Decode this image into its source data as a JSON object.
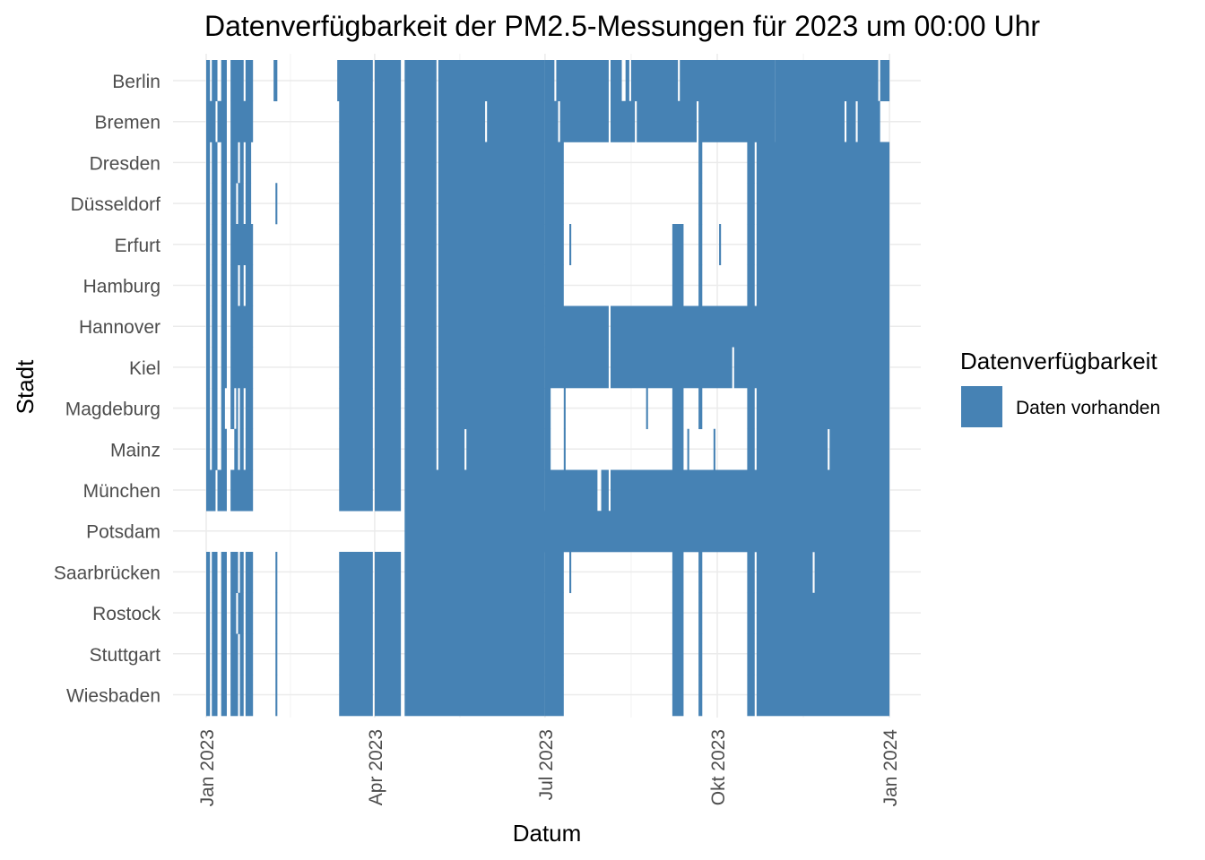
{
  "chart_data": {
    "type": "heatmap",
    "title": "Datenverfügbarkeit der PM2.5-Messungen für 2023 um 00:00 Uhr",
    "xlabel": "Datum",
    "ylabel": "Stadt",
    "x_range": [
      "2023-01-01",
      "2023-12-31"
    ],
    "x_ticks": [
      {
        "date": "2023-01-01",
        "label": "Jan 2023"
      },
      {
        "date": "2023-04-01",
        "label": "Apr 2023"
      },
      {
        "date": "2023-07-01",
        "label": "Jul 2023"
      },
      {
        "date": "2023-10-01",
        "label": "Okt 2023"
      },
      {
        "date": "2024-01-01",
        "label": "Jan 2024"
      }
    ],
    "grid": true,
    "legend": {
      "title": "Datenverfügbarkeit",
      "position": "right",
      "entries": [
        {
          "label": "Daten vorhanden",
          "color": "#4682B4"
        }
      ]
    },
    "fill_color": "#4682B4",
    "cities": [
      "Berlin",
      "Bremen",
      "Dresden",
      "Düsseldorf",
      "Erfurt",
      "Hamburg",
      "Hannover",
      "Kiel",
      "Magdeburg",
      "Mainz",
      "München",
      "Potsdam",
      "Saarbrücken",
      "Rostock",
      "Stuttgart",
      "Wiesbaden"
    ],
    "available": [
      [
        [
          "01-01",
          "01-02"
        ],
        [
          "01-04",
          "01-06"
        ],
        [
          "01-09",
          "01-11"
        ],
        [
          "01-14",
          "01-20"
        ],
        [
          "01-22",
          "01-25"
        ],
        [
          "02-06",
          "02-07"
        ],
        [
          "03-12",
          "03-30"
        ],
        [
          "04-01",
          "04-14"
        ],
        [
          "04-17",
          "05-03"
        ],
        [
          "05-05",
          "06-30"
        ],
        [
          "07-01",
          "07-05"
        ],
        [
          "07-07",
          "08-03"
        ],
        [
          "08-05",
          "08-10"
        ],
        [
          "08-13",
          "08-14"
        ],
        [
          "08-16",
          "09-09"
        ],
        [
          "09-11",
          "10-31"
        ],
        [
          "11-01",
          "12-25"
        ],
        [
          "12-27",
          "12-31"
        ]
      ],
      [
        [
          "01-01",
          "01-05"
        ],
        [
          "01-07",
          "01-11"
        ],
        [
          "01-14",
          "01-25"
        ],
        [
          "03-13",
          "03-30"
        ],
        [
          "04-01",
          "04-14"
        ],
        [
          "04-17",
          "05-03"
        ],
        [
          "05-05",
          "05-29"
        ],
        [
          "05-31",
          "06-30"
        ],
        [
          "07-01",
          "07-07"
        ],
        [
          "07-09",
          "08-03"
        ],
        [
          "08-05",
          "08-17"
        ],
        [
          "08-19",
          "09-19"
        ],
        [
          "09-21",
          "10-31"
        ],
        [
          "11-01",
          "12-07"
        ],
        [
          "12-09",
          "12-13"
        ],
        [
          "12-15",
          "12-26"
        ]
      ],
      [
        [
          "01-01",
          "01-02"
        ],
        [
          "01-04",
          "01-06"
        ],
        [
          "01-09",
          "01-11"
        ],
        [
          "01-14",
          "01-17"
        ],
        [
          "01-19",
          "01-20"
        ],
        [
          "01-22",
          "01-24"
        ],
        [
          "03-13",
          "03-30"
        ],
        [
          "04-01",
          "04-14"
        ],
        [
          "04-17",
          "05-03"
        ],
        [
          "05-05",
          "06-30"
        ],
        [
          "07-01",
          "07-10"
        ],
        [
          "09-21",
          "09-22"
        ],
        [
          "10-17",
          "10-20"
        ],
        [
          "10-22",
          "12-31"
        ]
      ],
      [
        [
          "01-01",
          "01-02"
        ],
        [
          "01-04",
          "01-06"
        ],
        [
          "01-09",
          "01-11"
        ],
        [
          "01-14",
          "01-16"
        ],
        [
          "01-18",
          "01-20"
        ],
        [
          "01-22",
          "01-24"
        ],
        [
          "02-07",
          "02-07"
        ],
        [
          "03-13",
          "03-30"
        ],
        [
          "04-01",
          "04-14"
        ],
        [
          "04-17",
          "05-03"
        ],
        [
          "05-05",
          "06-30"
        ],
        [
          "07-01",
          "07-10"
        ],
        [
          "09-21",
          "09-22"
        ],
        [
          "10-17",
          "10-20"
        ],
        [
          "10-22",
          "12-31"
        ]
      ],
      [
        [
          "01-01",
          "01-02"
        ],
        [
          "01-04",
          "01-06"
        ],
        [
          "01-09",
          "01-11"
        ],
        [
          "01-14",
          "01-25"
        ],
        [
          "03-13",
          "03-30"
        ],
        [
          "04-01",
          "04-14"
        ],
        [
          "04-17",
          "05-03"
        ],
        [
          "05-05",
          "06-30"
        ],
        [
          "07-01",
          "07-10"
        ],
        [
          "07-14",
          "07-14"
        ],
        [
          "09-07",
          "09-12"
        ],
        [
          "09-21",
          "09-22"
        ],
        [
          "10-02",
          "10-02"
        ],
        [
          "10-17",
          "10-20"
        ],
        [
          "10-22",
          "12-31"
        ]
      ],
      [
        [
          "01-01",
          "01-02"
        ],
        [
          "01-04",
          "01-06"
        ],
        [
          "01-09",
          "01-11"
        ],
        [
          "01-14",
          "01-17"
        ],
        [
          "01-19",
          "01-20"
        ],
        [
          "01-22",
          "01-25"
        ],
        [
          "03-13",
          "03-30"
        ],
        [
          "04-01",
          "04-14"
        ],
        [
          "04-17",
          "05-03"
        ],
        [
          "05-05",
          "06-30"
        ],
        [
          "07-01",
          "07-10"
        ],
        [
          "09-07",
          "09-12"
        ],
        [
          "09-21",
          "09-22"
        ],
        [
          "10-17",
          "10-20"
        ],
        [
          "10-22",
          "12-31"
        ]
      ],
      [
        [
          "01-01",
          "01-02"
        ],
        [
          "01-04",
          "01-06"
        ],
        [
          "01-09",
          "01-11"
        ],
        [
          "01-14",
          "01-25"
        ],
        [
          "03-13",
          "03-30"
        ],
        [
          "04-01",
          "04-14"
        ],
        [
          "04-17",
          "05-03"
        ],
        [
          "05-05",
          "06-30"
        ],
        [
          "07-01",
          "08-03"
        ],
        [
          "08-05",
          "12-31"
        ]
      ],
      [
        [
          "01-01",
          "01-02"
        ],
        [
          "01-04",
          "01-06"
        ],
        [
          "01-09",
          "01-11"
        ],
        [
          "01-14",
          "01-25"
        ],
        [
          "03-13",
          "03-30"
        ],
        [
          "04-01",
          "04-14"
        ],
        [
          "04-17",
          "05-03"
        ],
        [
          "05-05",
          "06-30"
        ],
        [
          "07-01",
          "08-03"
        ],
        [
          "08-05",
          "10-08"
        ],
        [
          "10-10",
          "12-31"
        ]
      ],
      [
        [
          "01-01",
          "01-02"
        ],
        [
          "01-04",
          "01-06"
        ],
        [
          "01-09",
          "01-10"
        ],
        [
          "01-14",
          "01-15"
        ],
        [
          "01-17",
          "01-17"
        ],
        [
          "01-19",
          "01-20"
        ],
        [
          "01-22",
          "01-25"
        ],
        [
          "03-13",
          "03-30"
        ],
        [
          "04-01",
          "04-14"
        ],
        [
          "04-17",
          "05-03"
        ],
        [
          "05-05",
          "06-30"
        ],
        [
          "07-01",
          "07-03"
        ],
        [
          "07-11",
          "07-11"
        ],
        [
          "08-24",
          "08-24"
        ],
        [
          "09-07",
          "09-12"
        ],
        [
          "09-21",
          "09-22"
        ],
        [
          "10-17",
          "10-20"
        ],
        [
          "10-22",
          "12-31"
        ]
      ],
      [
        [
          "01-01",
          "01-02"
        ],
        [
          "01-04",
          "01-06"
        ],
        [
          "01-09",
          "01-11"
        ],
        [
          "01-16",
          "01-17"
        ],
        [
          "01-19",
          "01-20"
        ],
        [
          "01-22",
          "01-25"
        ],
        [
          "03-13",
          "03-30"
        ],
        [
          "04-01",
          "04-14"
        ],
        [
          "04-17",
          "05-03"
        ],
        [
          "05-05",
          "05-18"
        ],
        [
          "05-20",
          "06-30"
        ],
        [
          "07-01",
          "07-03"
        ],
        [
          "07-11",
          "07-11"
        ],
        [
          "09-07",
          "09-12"
        ],
        [
          "09-15",
          "09-15"
        ],
        [
          "09-29",
          "09-29"
        ],
        [
          "10-17",
          "10-20"
        ],
        [
          "10-22",
          "11-28"
        ],
        [
          "11-30",
          "12-31"
        ]
      ],
      [
        [
          "01-01",
          "01-05"
        ],
        [
          "01-07",
          "01-11"
        ],
        [
          "01-14",
          "01-25"
        ],
        [
          "03-13",
          "03-30"
        ],
        [
          "04-01",
          "04-14"
        ],
        [
          "04-17",
          "06-30"
        ],
        [
          "07-01",
          "07-28"
        ],
        [
          "07-31",
          "08-03"
        ],
        [
          "08-05",
          "12-31"
        ]
      ],
      [
        [
          "04-17",
          "12-31"
        ]
      ],
      [
        [
          "01-01",
          "01-02"
        ],
        [
          "01-04",
          "01-06"
        ],
        [
          "01-09",
          "01-11"
        ],
        [
          "01-14",
          "01-17"
        ],
        [
          "01-19",
          "01-20"
        ],
        [
          "01-22",
          "01-25"
        ],
        [
          "02-07",
          "02-07"
        ],
        [
          "03-13",
          "03-30"
        ],
        [
          "04-01",
          "04-14"
        ],
        [
          "04-17",
          "06-30"
        ],
        [
          "07-01",
          "07-10"
        ],
        [
          "07-14",
          "07-14"
        ],
        [
          "09-07",
          "09-12"
        ],
        [
          "09-21",
          "09-22"
        ],
        [
          "10-17",
          "10-20"
        ],
        [
          "10-22",
          "11-20"
        ],
        [
          "11-22",
          "12-31"
        ]
      ],
      [
        [
          "01-01",
          "01-02"
        ],
        [
          "01-04",
          "01-06"
        ],
        [
          "01-09",
          "01-11"
        ],
        [
          "01-14",
          "01-16"
        ],
        [
          "01-18",
          "01-20"
        ],
        [
          "01-22",
          "01-25"
        ],
        [
          "02-07",
          "02-07"
        ],
        [
          "03-13",
          "03-30"
        ],
        [
          "04-01",
          "04-14"
        ],
        [
          "04-17",
          "06-30"
        ],
        [
          "07-01",
          "07-10"
        ],
        [
          "09-07",
          "09-12"
        ],
        [
          "09-21",
          "09-22"
        ],
        [
          "10-17",
          "10-20"
        ],
        [
          "10-22",
          "12-31"
        ]
      ],
      [
        [
          "01-01",
          "01-02"
        ],
        [
          "01-04",
          "01-06"
        ],
        [
          "01-09",
          "01-11"
        ],
        [
          "01-14",
          "01-17"
        ],
        [
          "01-19",
          "01-20"
        ],
        [
          "01-22",
          "01-25"
        ],
        [
          "02-07",
          "02-07"
        ],
        [
          "03-13",
          "03-30"
        ],
        [
          "04-01",
          "04-14"
        ],
        [
          "04-17",
          "06-30"
        ],
        [
          "07-01",
          "07-10"
        ],
        [
          "09-07",
          "09-12"
        ],
        [
          "09-21",
          "09-22"
        ],
        [
          "10-17",
          "10-20"
        ],
        [
          "10-22",
          "12-31"
        ]
      ],
      [
        [
          "01-01",
          "01-02"
        ],
        [
          "01-04",
          "01-06"
        ],
        [
          "01-09",
          "01-11"
        ],
        [
          "01-14",
          "01-17"
        ],
        [
          "01-19",
          "01-20"
        ],
        [
          "01-22",
          "01-25"
        ],
        [
          "02-07",
          "02-07"
        ],
        [
          "03-13",
          "03-30"
        ],
        [
          "04-01",
          "04-14"
        ],
        [
          "04-17",
          "06-30"
        ],
        [
          "07-01",
          "07-10"
        ],
        [
          "09-07",
          "09-12"
        ],
        [
          "09-21",
          "09-22"
        ],
        [
          "10-17",
          "10-20"
        ],
        [
          "10-22",
          "12-31"
        ]
      ]
    ]
  }
}
